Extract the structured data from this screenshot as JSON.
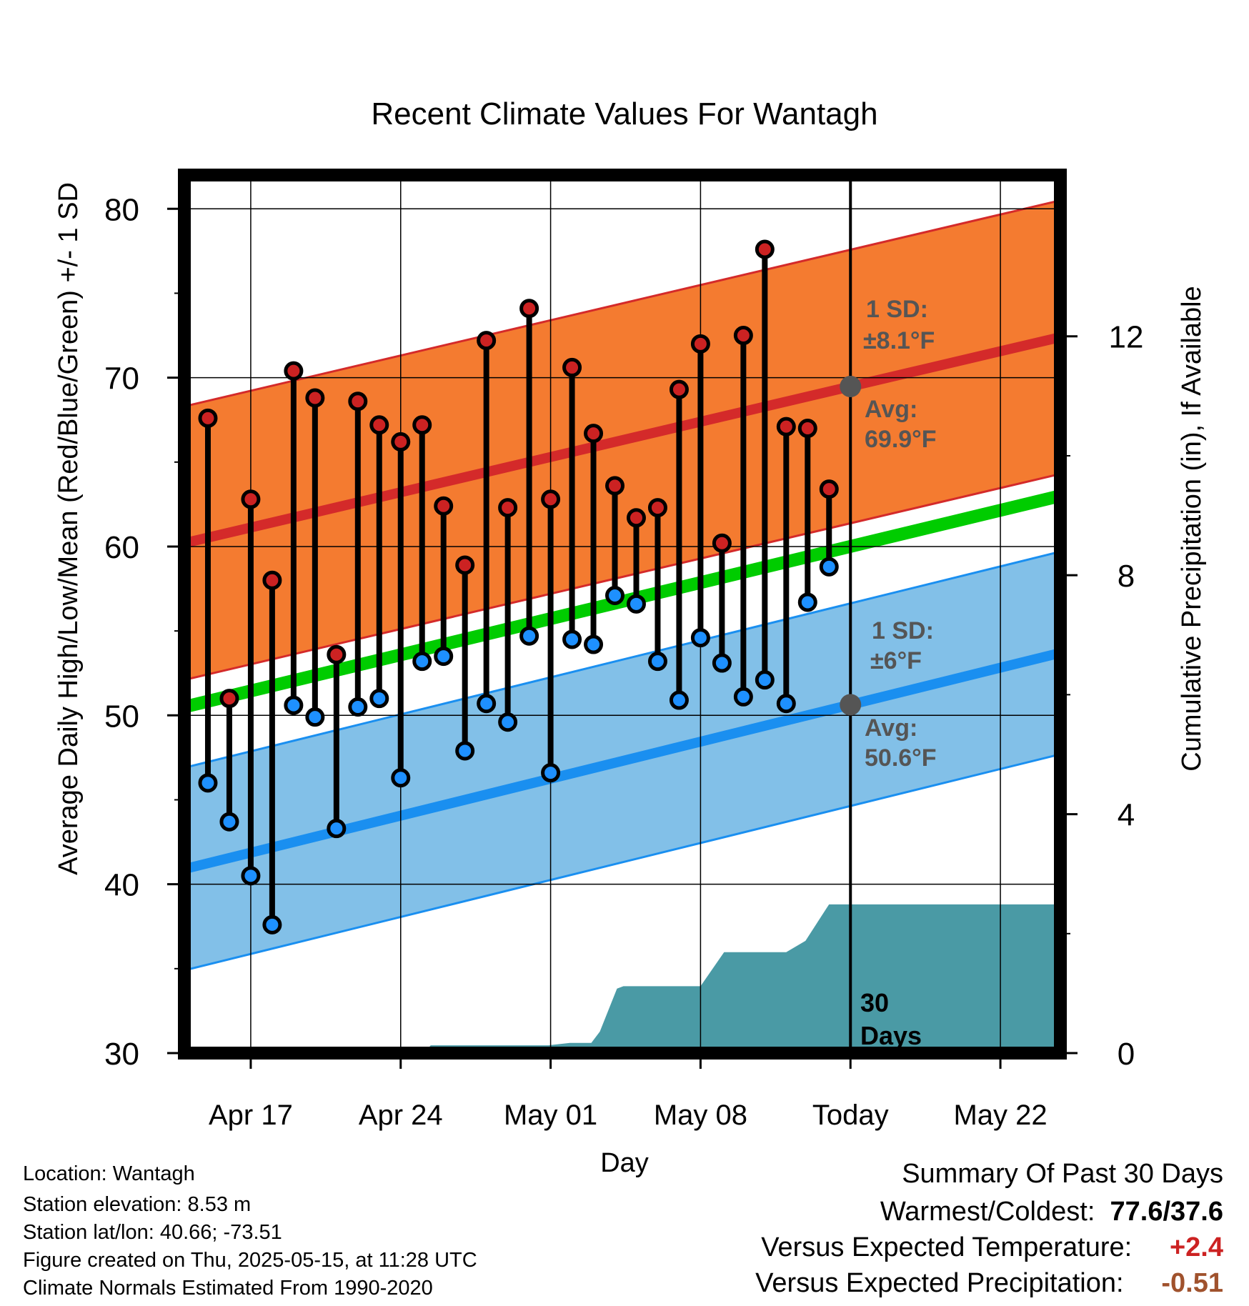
{
  "title": "Recent Climate Values For Wantagh",
  "y_label": "Average Daily High/Low/Mean (Red/Blue/Green) +/- 1 SD",
  "y2_label": "Cumulative Precipitation (in), If Available",
  "x_label": "Day",
  "annotations": {
    "high_sd": "1 SD:",
    "high_sd_val": "±8.1°F",
    "high_avg": "Avg:",
    "high_avg_val": "69.9°F",
    "low_sd": "1 SD:",
    "low_sd_val": "±6°F",
    "low_avg": "Avg:",
    "low_avg_val": "50.6°F",
    "days_num": "30",
    "days_word": "Days"
  },
  "info": {
    "location": "Location: Wantagh",
    "elevation": "Station elevation: 8.53 m",
    "latlon": "Station lat/lon: 40.66; -73.51",
    "created": "Figure created on Thu, 2025-05-15, at 11:28 UTC",
    "normals": "Climate Normals Estimated From 1990-2020"
  },
  "summary": {
    "heading": "Summary Of Past 30 Days",
    "warm_cold_label": "Warmest/Coldest:",
    "warm_cold_value": "77.6/37.6",
    "temp_label": "Versus Expected Temperature:",
    "temp_value": "+2.4",
    "precip_label": "Versus Expected Precipitation:",
    "precip_value": "-0.51"
  },
  "colors": {
    "high_band": "#f47b30",
    "high_avg": "#d42a2a",
    "low_band": "#82c0e8",
    "low_avg": "#1a8ff0",
    "mean_line": "#00cc00",
    "precip": "#4a9aa5",
    "high_dot": "#cc2222",
    "low_dot": "#1e90ff"
  },
  "chart_data": {
    "type": "line",
    "x_axis": {
      "ticks": [
        "Apr 17",
        "Apr 24",
        "May 01",
        "May 08",
        "Today",
        "May 22"
      ],
      "tick_days": [
        3,
        10,
        17,
        24,
        31,
        38
      ],
      "xlim": [
        -0.1,
        40.8
      ]
    },
    "ylim": [
      30,
      82
    ],
    "yticks": [
      30,
      40,
      50,
      60,
      70,
      80
    ],
    "y2lim": [
      0,
      14.7
    ],
    "y2ticks": [
      0,
      4,
      8,
      12
    ],
    "grid": true,
    "normals": {
      "days": [
        -0.1,
        40.8
      ],
      "high_avg": [
        60.2,
        72.4
      ],
      "high_sd": 8.1,
      "low_avg": [
        40.9,
        53.7
      ],
      "low_sd": 6.0,
      "mean": [
        50.5,
        63.0
      ]
    },
    "observations": {
      "days": [
        1,
        2,
        3,
        4,
        5,
        6,
        7,
        8,
        9,
        10,
        11,
        12,
        13,
        14,
        15,
        16,
        17,
        18,
        19,
        20,
        21,
        22,
        23,
        24,
        25,
        26,
        27,
        28,
        29,
        30
      ],
      "highs": [
        67.6,
        51.0,
        62.8,
        58.0,
        70.4,
        68.8,
        53.6,
        68.6,
        67.2,
        66.2,
        67.2,
        62.4,
        58.9,
        72.2,
        62.3,
        74.1,
        62.8,
        70.6,
        66.7,
        63.6,
        61.7,
        62.3,
        69.3,
        72.0,
        60.2,
        72.5,
        77.6,
        67.1,
        67.0,
        63.4
      ],
      "lows": [
        46.0,
        43.7,
        40.5,
        37.6,
        50.6,
        49.9,
        43.3,
        50.5,
        51.0,
        46.3,
        53.2,
        53.5,
        47.9,
        50.7,
        49.6,
        54.7,
        46.6,
        54.5,
        54.2,
        57.1,
        56.6,
        53.2,
        50.9,
        54.6,
        53.1,
        51.1,
        52.1,
        50.7,
        56.7,
        58.8
      ]
    },
    "precipitation": {
      "days": [
        11.1,
        11.4,
        16.9,
        17.9,
        18.9,
        19.3,
        20.1,
        20.4,
        22.3,
        24.0,
        25.1,
        28.0,
        28.9,
        30.0,
        40.8
      ],
      "cumulative_in": [
        0.0,
        0.13,
        0.13,
        0.17,
        0.17,
        0.36,
        1.08,
        1.12,
        1.12,
        1.12,
        1.69,
        1.69,
        1.88,
        2.49,
        2.49
      ]
    }
  }
}
